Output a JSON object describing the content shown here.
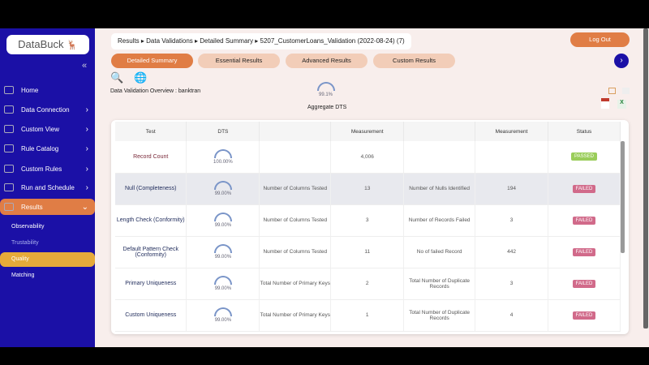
{
  "brand": "DataBuck",
  "sidebar": {
    "items": [
      {
        "label": "Home",
        "icon": "home-icon",
        "chevron": false
      },
      {
        "label": "Data Connection",
        "icon": "database-icon",
        "chevron": true
      },
      {
        "label": "Custom View",
        "icon": "database-icon",
        "chevron": true
      },
      {
        "label": "Rule Catalog",
        "icon": "database-icon",
        "chevron": true
      },
      {
        "label": "Custom Rules",
        "icon": "database-icon",
        "chevron": true
      },
      {
        "label": "Run and Schedule",
        "icon": "database-icon",
        "chevron": true
      },
      {
        "label": "Results",
        "icon": "clipboard-icon",
        "chevron": true,
        "active": true
      }
    ],
    "subitems": [
      "Observability",
      "Trustability",
      "Quality",
      "Matching"
    ],
    "active_sub": "Quality"
  },
  "breadcrumb": "Results ▸ Data Validations ▸ Detailed Summary ▸ 5207_CustomerLoans_Validation (2022-08-24) (7)",
  "logout": "Log Out",
  "tabs": [
    "Detailed Summary",
    "Essential Results",
    "Advanced Results",
    "Custom Results"
  ],
  "overview": "Data Validation Overview : banktran",
  "aggregate": {
    "value": "99.1%",
    "label": "Aggregate DTS",
    "percent": 99.1
  },
  "colors": {
    "sidebar": "#1b10a6",
    "accent": "#e07d45",
    "passed": "#9acd5a",
    "failed": "#d16a8a"
  },
  "table": {
    "headers": [
      "Test",
      "DTS",
      "",
      "Measurement",
      "",
      "Measurement",
      "Status"
    ],
    "rows": [
      {
        "test": "Record Count",
        "dts": "100.00%",
        "m1label": "",
        "m1": "4,006",
        "m2label": "",
        "m2": "",
        "status": "PASSED"
      },
      {
        "test": "Null (Completeness)",
        "dts": "99.00%",
        "m1label": "Number of Columns Tested",
        "m1": "13",
        "m2label": "Number of Nulls Identified",
        "m2": "194",
        "status": "FAILED"
      },
      {
        "test": "Length Check (Conformity)",
        "dts": "99.00%",
        "m1label": "Number of Columns Tested",
        "m1": "3",
        "m2label": "Number of Records Failed",
        "m2": "3",
        "status": "FAILED"
      },
      {
        "test": "Default Pattern Check (Conformity)",
        "dts": "99.00%",
        "m1label": "Number of Columns Tested",
        "m1": "11",
        "m2label": "No of failed Record",
        "m2": "442",
        "status": "FAILED"
      },
      {
        "test": "Primary Uniqueness",
        "dts": "99.00%",
        "m1label": "Total Number of Primary Keys",
        "m1": "2",
        "m2label": "Total Number of Duplicate Records",
        "m2": "3",
        "status": "FAILED"
      },
      {
        "test": "Custom Uniqueness",
        "dts": "99.00%",
        "m1label": "Total Number of Primary Keys",
        "m1": "1",
        "m2label": "Total Number of Duplicate Records",
        "m2": "4",
        "status": "FAILED"
      }
    ]
  }
}
